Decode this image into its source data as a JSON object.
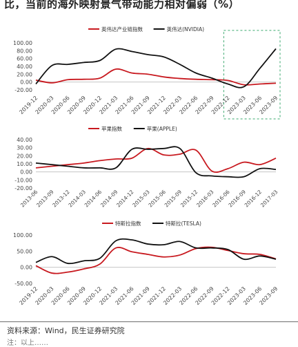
{
  "page": {
    "title": "比，当前的海外映射景气带动能力相对偏弱（%）",
    "source": "资料来源：Wind，民生证券研究院",
    "footnote": "注：以上……"
  },
  "colors": {
    "red": "#c8191f",
    "black": "#111111",
    "highlight": "#3aa86e"
  },
  "chart_data": [
    {
      "type": "line",
      "categories": [
        "2019-12",
        "2020-03",
        "2020-06",
        "2020-09",
        "2020-12",
        "2021-03",
        "2021-06",
        "2021-09",
        "2021-12",
        "2022-03",
        "2022-06",
        "2022-09",
        "2022-12",
        "2023-03",
        "2023-06",
        "2023-09"
      ],
      "ylim": [
        -20,
        100
      ],
      "yticks": [
        "100.00",
        "80.00",
        "60.00",
        "40.00",
        "20.00",
        "0.00",
        "-20.00"
      ],
      "highlight_box": "last four periods (2023-03 to 2023-09)",
      "series": [
        {
          "name": "英伟达产业链指数",
          "color": "#c8191f",
          "values": [
            5,
            -2,
            6,
            7,
            10,
            33,
            23,
            20,
            13,
            9,
            7,
            6,
            4,
            -7,
            -5,
            -3
          ]
        },
        {
          "name": "英伟达(NVIDIA)",
          "color": "#111111",
          "values": [
            -5,
            42,
            45,
            50,
            55,
            84,
            78,
            70,
            64,
            45,
            23,
            10,
            -5,
            -12,
            35,
            85
          ]
        }
      ]
    },
    {
      "type": "line",
      "categories": [
        "2013-06",
        "2013-09",
        "2013-12",
        "2014-03",
        "2014-06",
        "2014-09",
        "2014-12",
        "2015-03",
        "2015-06",
        "2015-09",
        "2015-12",
        "2016-03",
        "2016-06",
        "2016-09",
        "2016-12",
        "2017-03"
      ],
      "ylim": [
        -20,
        40
      ],
      "yticks": [
        "40.00",
        "30.00",
        "20.00",
        "10.00",
        "0.00",
        "-10.00",
        "-20.00"
      ],
      "series": [
        {
          "name": "苹果指数",
          "color": "#c8191f",
          "values": [
            5,
            7,
            9,
            11,
            14,
            16,
            17,
            29,
            21,
            22,
            27,
            1,
            4,
            12,
            9,
            17
          ]
        },
        {
          "name": "苹果(APPLE)",
          "color": "#111111",
          "values": [
            11,
            9,
            7,
            5,
            5,
            5,
            28,
            28,
            29,
            29,
            -1,
            -5,
            -6,
            -6,
            4,
            3
          ]
        }
      ]
    },
    {
      "type": "line",
      "categories": [
        "2019-12",
        "2020-03",
        "2020-06",
        "2020-09",
        "2020-12",
        "2021-03",
        "2021-06",
        "2021-09",
        "2021-12",
        "2022-03",
        "2022-06",
        "2022-09",
        "2022-12",
        "2023-03",
        "2023-06",
        "2023-09"
      ],
      "ylim": [
        -50,
        100
      ],
      "yticks": [
        "100.00",
        "50.00",
        "0.00",
        "-50.00"
      ],
      "series": [
        {
          "name": "特斯拉指数",
          "color": "#c8191f",
          "values": [
            5,
            -18,
            -15,
            -5,
            10,
            60,
            48,
            40,
            32,
            38,
            58,
            62,
            52,
            42,
            40,
            26
          ]
        },
        {
          "name": "特斯拉(TESLA)",
          "color": "#111111",
          "values": [
            15,
            33,
            12,
            20,
            28,
            82,
            85,
            72,
            70,
            80,
            60,
            60,
            55,
            25,
            35,
            25
          ]
        }
      ]
    }
  ]
}
